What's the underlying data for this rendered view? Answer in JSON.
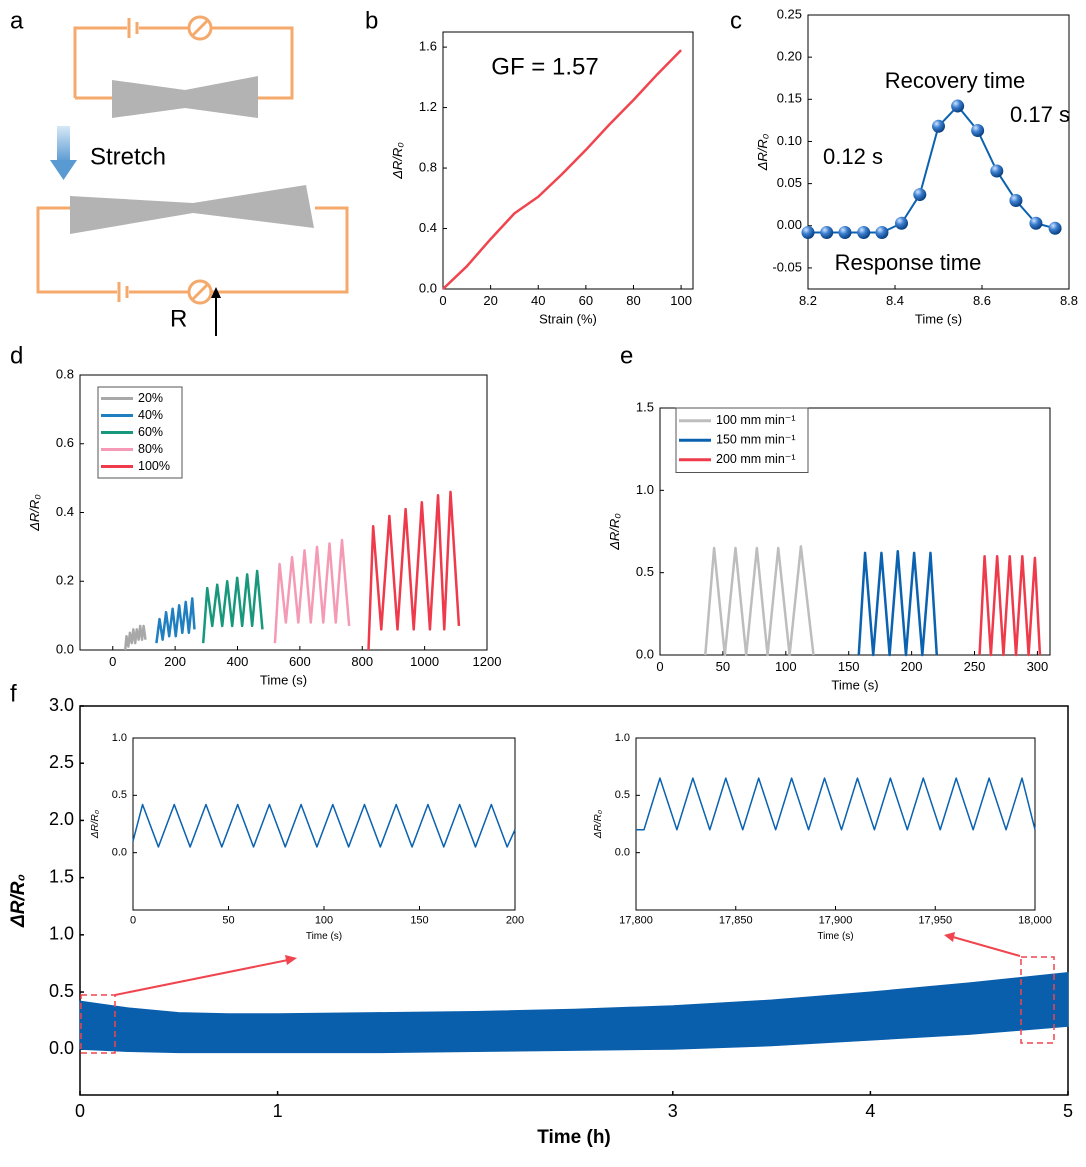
{
  "diagram": {
    "label": "a",
    "stretch": "Stretch",
    "resistor": "R"
  },
  "chart_data": [
    {
      "type": "line",
      "label": "b",
      "xlabel": "Strain (%)",
      "ylabel": "ΔR/R₀",
      "x": [
        0,
        10,
        20,
        30,
        40,
        50,
        60,
        70,
        80,
        90,
        100
      ],
      "values": [
        0,
        0.15,
        0.33,
        0.5,
        0.61,
        0.76,
        0.92,
        1.09,
        1.25,
        1.42,
        1.58
      ],
      "color": "#f0454f",
      "xlim": [
        0,
        105
      ],
      "ylim": [
        0,
        1.7
      ],
      "xticks": [
        0,
        20,
        40,
        60,
        80,
        100
      ],
      "yticks": [
        {
          "value": 0,
          "label": "0.0"
        },
        0.4,
        0.8,
        1.2,
        1.6
      ],
      "annotations": [
        {
          "text": "GF = 1.57",
          "color": "#000000"
        }
      ]
    },
    {
      "type": "line",
      "label": "c",
      "xlabel": "Time (s)",
      "ylabel": "ΔR/R₀",
      "markers": true,
      "x": [
        8.2,
        8.243,
        8.285,
        8.328,
        8.37,
        8.415,
        8.457,
        8.5,
        8.544,
        8.59,
        8.634,
        8.678,
        8.724,
        8.768
      ],
      "values": [
        -0.008,
        -0.008,
        -0.008,
        -0.008,
        -0.008,
        0.003,
        0.037,
        0.118,
        0.142,
        0.113,
        0.065,
        0.03,
        0.003,
        -0.003
      ],
      "color": "#0b62b0",
      "xlim": [
        8.2,
        8.8
      ],
      "ylim": [
        -0.075,
        0.25
      ],
      "xticks": [
        8.2,
        8.4,
        8.6,
        8.8
      ],
      "yticks": [
        -0.05,
        {
          "value": 0,
          "label": "0.00"
        },
        0.05,
        {
          "value": 0.1,
          "label": "0.10"
        },
        0.15,
        {
          "value": 0.2,
          "label": "0.20"
        },
        0.25
      ],
      "annotations": [
        {
          "text": "Recovery time",
          "color": "#8e3fa6"
        },
        {
          "text": "0.17 s",
          "color": "#8e3fa6"
        },
        {
          "text": "0.12 s",
          "color": "#f0454f"
        },
        {
          "text": "Response time",
          "color": "#f0454f"
        }
      ]
    },
    {
      "type": "line",
      "label": "d",
      "xlabel": "Time (s)",
      "ylabel": "ΔR/R₀",
      "legend": "upper left",
      "xlim": [
        -105,
        1200
      ],
      "ylim": [
        0,
        0.8
      ],
      "xticks": [
        0,
        200,
        400,
        600,
        800,
        1000,
        1200
      ],
      "yticks": [
        {
          "value": 0,
          "label": "0.0"
        },
        0.2,
        0.4,
        0.6,
        0.8
      ],
      "series": [
        {
          "name": "20%",
          "color": "#a8a8a8",
          "x": [
            40,
            44,
            50,
            55,
            61,
            66,
            72,
            77,
            83,
            88,
            94,
            99,
            105
          ],
          "values": [
            0,
            0.04,
            0.01,
            0.05,
            0.02,
            0.06,
            0.02,
            0.06,
            0.03,
            0.07,
            0.03,
            0.07,
            0.03
          ]
        },
        {
          "name": "40%",
          "color": "#1f7fc0",
          "x": [
            140,
            150,
            160,
            171,
            181,
            192,
            202,
            213,
            223,
            234,
            244,
            255,
            262
          ],
          "values": [
            0.02,
            0.09,
            0.03,
            0.11,
            0.04,
            0.12,
            0.04,
            0.13,
            0.05,
            0.14,
            0.05,
            0.15,
            0.06
          ]
        },
        {
          "name": "60%",
          "color": "#17987c",
          "x": [
            290,
            303,
            319,
            335,
            351,
            367,
            383,
            399,
            415,
            431,
            447,
            463,
            480
          ],
          "values": [
            0.02,
            0.18,
            0.07,
            0.19,
            0.07,
            0.2,
            0.07,
            0.21,
            0.07,
            0.22,
            0.07,
            0.23,
            0.06
          ]
        },
        {
          "name": "80%",
          "color": "#f59ab5",
          "x": [
            520,
            535,
            555,
            575,
            595,
            615,
            635,
            655,
            675,
            695,
            715,
            735,
            758
          ],
          "values": [
            0.02,
            0.25,
            0.08,
            0.27,
            0.08,
            0.29,
            0.08,
            0.3,
            0.08,
            0.31,
            0.08,
            0.32,
            0.07
          ]
        },
        {
          "name": "100%",
          "color": "#ee3a4b",
          "x": [
            820,
            835,
            861,
            887,
            913,
            939,
            965,
            991,
            1017,
            1043,
            1063,
            1083,
            1110
          ],
          "values": [
            0,
            0.36,
            0.06,
            0.39,
            0.06,
            0.41,
            0.06,
            0.43,
            0.06,
            0.45,
            0.06,
            0.46,
            0.07
          ]
        }
      ]
    },
    {
      "type": "line",
      "label": "e",
      "xlabel": "Time (s)",
      "ylabel": "ΔR/R₀",
      "legend": "upper left",
      "xlim": [
        0,
        310
      ],
      "ylim": [
        0,
        1.5
      ],
      "xticks": [
        0,
        50,
        100,
        150,
        200,
        250,
        300
      ],
      "yticks": [
        {
          "value": 0,
          "label": "0.0"
        },
        0.5,
        {
          "value": 1,
          "label": "1.0"
        },
        1.5
      ],
      "series": [
        {
          "name": "100 mm min⁻¹",
          "color": "#bdbdbd",
          "x": [
            36,
            43,
            51.5,
            60,
            68.5,
            77,
            85.5,
            94,
            103,
            112,
            122
          ],
          "values": [
            0,
            0.65,
            0,
            0.65,
            0,
            0.65,
            0,
            0.65,
            0,
            0.66,
            0
          ]
        },
        {
          "name": "150 mm min⁻¹",
          "color": "#0b62b0",
          "x": [
            158,
            163,
            169.5,
            176,
            182.5,
            189,
            195.5,
            202,
            208.5,
            215,
            220
          ],
          "values": [
            0,
            0.62,
            0,
            0.62,
            0,
            0.63,
            0,
            0.62,
            0,
            0.62,
            0
          ]
        },
        {
          "name": "200 mm min⁻¹",
          "color": "#ee3a4b",
          "x": [
            254,
            258,
            263,
            268,
            273,
            278,
            283,
            288,
            293,
            298,
            302
          ],
          "values": [
            0,
            0.6,
            0,
            0.6,
            0,
            0.6,
            0,
            0.6,
            0,
            0.59,
            0
          ]
        }
      ]
    },
    {
      "type": "band",
      "label": "f",
      "xlabel": "Time (h)",
      "ylabel": "ΔR/R₀",
      "color": "#0a5fad",
      "x": [
        0,
        0.25,
        0.5,
        0.75,
        1,
        1.5,
        2,
        2.5,
        3,
        3.5,
        4,
        4.5,
        5
      ],
      "upper": [
        0.42,
        0.36,
        0.32,
        0.31,
        0.31,
        0.32,
        0.33,
        0.35,
        0.38,
        0.43,
        0.5,
        0.58,
        0.67
      ],
      "lower": [
        0,
        -0.02,
        -0.03,
        -0.03,
        -0.03,
        -0.03,
        -0.02,
        -0.01,
        0,
        0.03,
        0.08,
        0.13,
        0.2
      ],
      "xlim": [
        0,
        5
      ],
      "ylim": [
        -0.4,
        3
      ],
      "xticks": [
        0,
        1,
        3,
        4,
        5
      ],
      "yticks": [
        {
          "value": 0,
          "label": "0.0"
        },
        0.5,
        {
          "value": 1,
          "label": "1.0"
        },
        1.5,
        {
          "value": 2,
          "label": "2.0"
        },
        2.5,
        {
          "value": 3,
          "label": "3.0"
        }
      ],
      "insets": [
        {
          "type": "line",
          "xlabel": "Time (s)",
          "ylabel": "ΔR/R₀",
          "color": "#0b62b0",
          "x": [
            0,
            5,
            13.3,
            21.6,
            29.9,
            38.2,
            46.5,
            54.8,
            63.1,
            71.4,
            79.7,
            88,
            96.3,
            104.6,
            112.9,
            121.2,
            129.5,
            137.8,
            146.1,
            154.4,
            162.7,
            171,
            179.3,
            187.6,
            195.9,
            200
          ],
          "values": [
            0.1,
            0.42,
            0.05,
            0.42,
            0.05,
            0.42,
            0.05,
            0.42,
            0.05,
            0.42,
            0.05,
            0.42,
            0.05,
            0.42,
            0.05,
            0.42,
            0.05,
            0.42,
            0.05,
            0.42,
            0.05,
            0.42,
            0.05,
            0.42,
            0.05,
            0.2
          ],
          "xlim": [
            0,
            200
          ],
          "ylim": [
            -0.5,
            1
          ],
          "xticks": [
            0,
            50,
            100,
            150,
            200
          ],
          "yticks": [
            {
              "value": 0,
              "label": "0.0"
            },
            0.5,
            {
              "value": 1,
              "label": "1.0"
            }
          ]
        },
        {
          "type": "line",
          "xlabel": "Time (s)",
          "ylabel": "ΔR/R₀",
          "color": "#0b62b0",
          "x": [
            17800,
            17804,
            17812,
            17820.5,
            17828.5,
            17837,
            17845,
            17853.5,
            17861.5,
            17870,
            17878,
            17886.5,
            17894.5,
            17903,
            17911,
            17919.5,
            17927.5,
            17936,
            17944,
            17952.5,
            17960.5,
            17969,
            17977,
            17985.5,
            17993.5,
            18000
          ],
          "values": [
            0.2,
            0.2,
            0.65,
            0.2,
            0.65,
            0.2,
            0.65,
            0.2,
            0.65,
            0.2,
            0.65,
            0.2,
            0.65,
            0.2,
            0.65,
            0.2,
            0.65,
            0.2,
            0.65,
            0.2,
            0.65,
            0.2,
            0.65,
            0.2,
            0.65,
            0.2
          ],
          "xlim": [
            17800,
            18000
          ],
          "ylim": [
            -0.5,
            1
          ],
          "xticks": [
            {
              "value": 17800,
              "label": "17,800"
            },
            {
              "value": 17850,
              "label": "17,850"
            },
            {
              "value": 17900,
              "label": "17,900"
            },
            {
              "value": 17950,
              "label": "17,950"
            },
            {
              "value": 18000,
              "label": "18,000"
            }
          ],
          "yticks": [
            {
              "value": 0,
              "label": "0.0"
            },
            0.5,
            {
              "value": 1,
              "label": "1.0"
            }
          ]
        }
      ]
    }
  ]
}
